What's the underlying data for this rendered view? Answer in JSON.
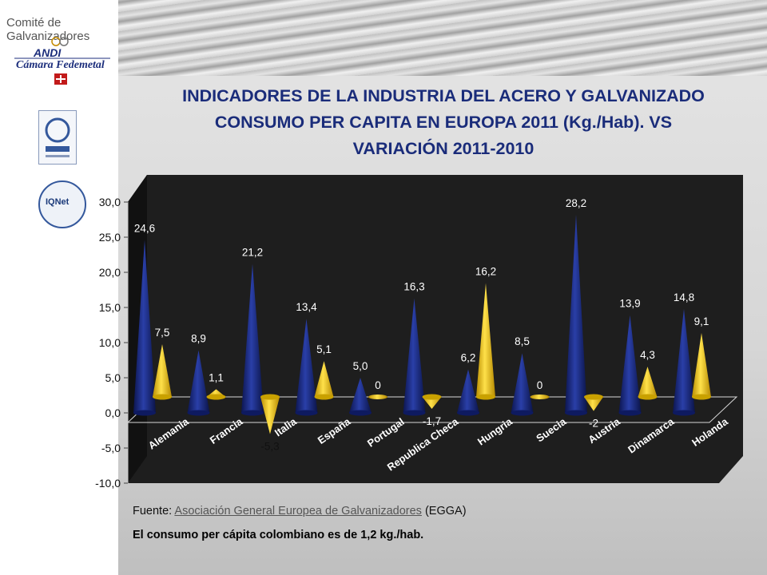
{
  "header": {
    "brand": "Comité de Galvanizadores",
    "logo_andi": "ANDI",
    "logo_camara": "Cámara Fedemetal",
    "cert_label": "IQNet"
  },
  "title_lines": [
    "INDICADORES DE LA INDUSTRIA DEL ACERO Y GALVANIZADO",
    "CONSUMO PER CAPITA EN EUROPA 2011 (Kg./Hab). VS",
    "VARIACIÓN 2011-2010"
  ],
  "colors": {
    "series_consumo": "#1a2a80",
    "series_variacion": "#f2c300",
    "plot_back": "#1e1e1e",
    "title": "#1a2c7a"
  },
  "chart_data": {
    "type": "bar",
    "shape": "cone-3d",
    "categories": [
      "Alemania",
      "Francia",
      "Italia",
      "España",
      "Portugal",
      "Republica Checa",
      "Hungria",
      "Suecia",
      "Austria",
      "Dinamarca",
      "Holanda"
    ],
    "series": [
      {
        "values": [
          24.6,
          8.9,
          21.2,
          13.4,
          5.0,
          16.3,
          6.2,
          8.5,
          28.2,
          13.9,
          14.8
        ],
        "labels": [
          "24,6",
          "8,9",
          "21,2",
          "13,4",
          "5,0",
          "16,3",
          "6,2",
          "8,5",
          "28,2",
          "13,9",
          "14,8"
        ]
      },
      {
        "values": [
          7.5,
          1.1,
          -5.3,
          5.1,
          0,
          -1.7,
          16.2,
          0,
          -2,
          4.3,
          9.1
        ],
        "labels": [
          "7,5",
          "1,1",
          "-5,3",
          "5,1",
          "0",
          "-1,7",
          "16,2",
          "0",
          "-2",
          "4,3",
          "9,1"
        ]
      }
    ],
    "yticks": [
      "30,0",
      "25,0",
      "20,0",
      "15,0",
      "10,0",
      "5,0",
      "0,0",
      "-5,0",
      "-10,0"
    ],
    "ylim": [
      -10,
      30
    ],
    "grid": false,
    "legend": "none"
  },
  "footer": {
    "source_prefix": "Fuente: ",
    "source_link": "Asociación General Europea de Galvanizadores",
    "source_suffix": " (EGGA)",
    "note": "El consumo per cápita colombiano es de 1,2 kg./hab."
  }
}
